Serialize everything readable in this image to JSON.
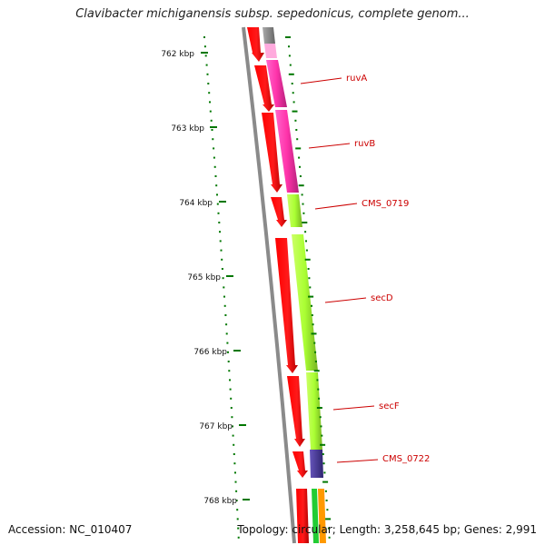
{
  "title": "Clavibacter michiganensis subsp. sepedonicus, complete genom...",
  "footer": {
    "accession": "Accession: NC_010407",
    "topology": "Topology: circular; Length: 3,258,645 bp; Genes: 2,991"
  },
  "colors": {
    "backbone": "#8a8a8a",
    "cds": "#ff0000",
    "ruv_genes": "#ff33aa",
    "sec_genes": "#aaff33",
    "cms_0722": "#4a3a9a",
    "tick_marks": "#007700",
    "gene_labels": "#cc0000",
    "bottom_green": "#22cc33",
    "bottom_orange": "#ff9900"
  },
  "ticks": [
    {
      "label": "762 kbp"
    },
    {
      "label": "763 kbp"
    },
    {
      "label": "764 kbp"
    },
    {
      "label": "765 kbp"
    },
    {
      "label": "766 kbp"
    },
    {
      "label": "767 kbp"
    },
    {
      "label": "768 kbp"
    }
  ],
  "gene_labels": [
    {
      "label": "ruvA"
    },
    {
      "label": "ruvB"
    },
    {
      "label": "CMS_0719"
    },
    {
      "label": "secD"
    },
    {
      "label": "secF"
    },
    {
      "label": "CMS_0722"
    }
  ]
}
